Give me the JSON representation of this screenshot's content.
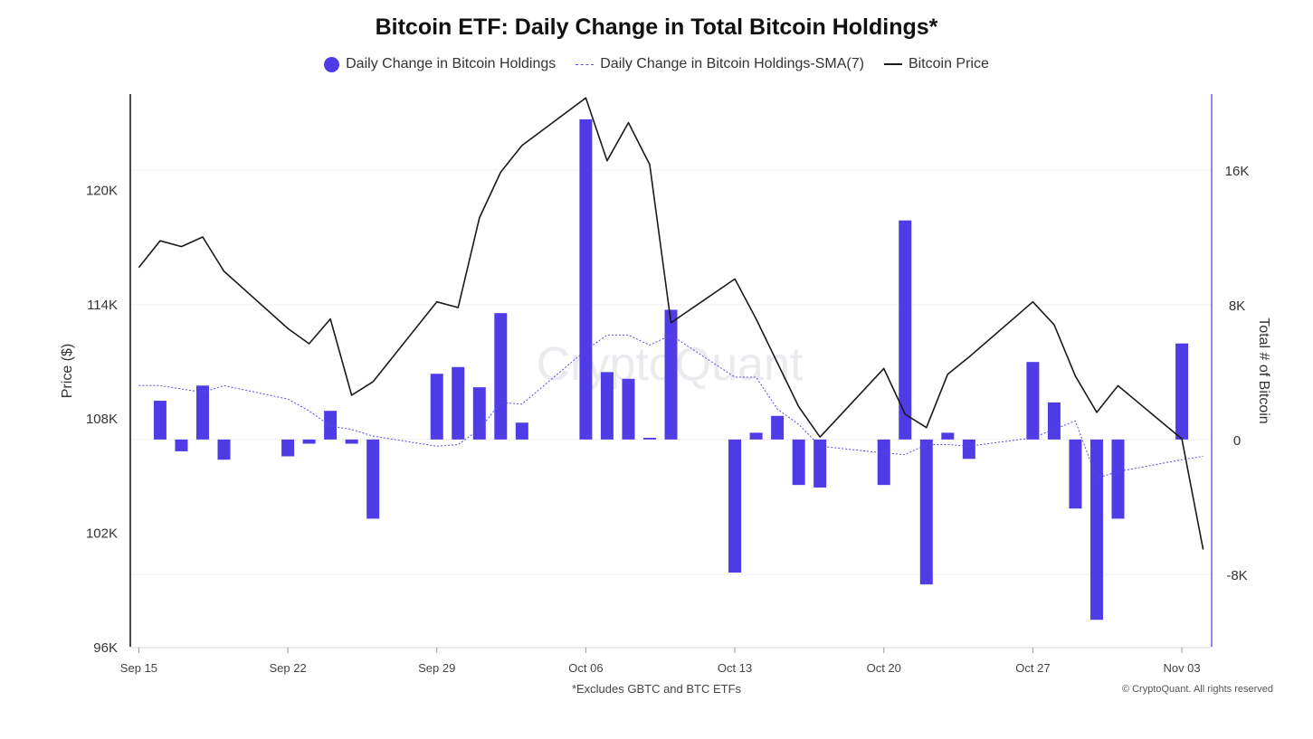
{
  "chart_data": {
    "type": "bar",
    "title": "Bitcoin ETF: Daily Change in Total Bitcoin Holdings*",
    "footnote": "*Excludes GBTC and BTC ETFs",
    "copyright": "© CryptoQuant. All rights reserved",
    "watermark": "CryptoQuant",
    "legend_position": "top-center",
    "grid": true,
    "colors": {
      "bars": "#4f3ce6",
      "sma": "#5a4ae0",
      "price": "#1a1a1a",
      "right_axis": "#6b5cf0"
    },
    "y_left": {
      "label": "Price ($)",
      "ticks": [
        "96K",
        "102K",
        "108K",
        "114K",
        "120K"
      ],
      "tick_values": [
        96000,
        102000,
        108000,
        114000,
        120000
      ],
      "range": [
        96000,
        125000
      ]
    },
    "y_right": {
      "label": "Total # of Bitcoin",
      "ticks": [
        "-8K",
        "0",
        "8K",
        "16K"
      ],
      "tick_values": [
        -8000,
        0,
        8000,
        16000
      ],
      "range": [
        -12300,
        20500
      ]
    },
    "x_axis": {
      "ticks": [
        "Sep 15",
        "Sep 22",
        "Sep 29",
        "Oct 06",
        "Oct 13",
        "Oct 20",
        "Oct 27",
        "Nov 03"
      ],
      "tick_days": [
        0,
        7,
        14,
        21,
        28,
        35,
        42,
        49
      ],
      "range": [
        -0.4,
        50.4
      ]
    },
    "legend": [
      {
        "name": "Daily Change in Bitcoin Holdings",
        "style": "dot"
      },
      {
        "name": "Daily Change in Bitcoin Holdings-SMA(7)",
        "style": "dash"
      },
      {
        "name": "Bitcoin Price",
        "style": "line"
      }
    ],
    "series": [
      {
        "name": "Daily Change in Bitcoin Holdings",
        "type": "bar",
        "x": [
          "2025-09-16",
          "2025-09-17",
          "2025-09-18",
          "2025-09-19",
          "2025-09-22",
          "2025-09-23",
          "2025-09-24",
          "2025-09-25",
          "2025-09-26",
          "2025-09-29",
          "2025-09-30",
          "2025-10-01",
          "2025-10-02",
          "2025-10-03",
          "2025-10-06",
          "2025-10-07",
          "2025-10-08",
          "2025-10-09",
          "2025-10-10",
          "2025-10-13",
          "2025-10-14",
          "2025-10-15",
          "2025-10-16",
          "2025-10-17",
          "2025-10-20",
          "2025-10-21",
          "2025-10-22",
          "2025-10-23",
          "2025-10-24",
          "2025-10-27",
          "2025-10-28",
          "2025-10-29",
          "2025-10-30",
          "2025-10-31",
          "2025-11-03"
        ],
        "values": [
          2300,
          -700,
          3200,
          -1200,
          -1000,
          -250,
          1700,
          -250,
          -4700,
          3900,
          4300,
          3100,
          7500,
          1000,
          19000,
          4000,
          3600,
          100,
          7700,
          -7900,
          400,
          1400,
          -2700,
          -2850,
          -2700,
          13000,
          -8600,
          400,
          -1150,
          4600,
          2200,
          -4100,
          -10700,
          -4700,
          5700
        ]
      },
      {
        "name": "Daily Change in Bitcoin Holdings-SMA(7)",
        "type": "line",
        "x": [
          "2025-09-15",
          "2025-09-16",
          "2025-09-17",
          "2025-09-18",
          "2025-09-19",
          "2025-09-22",
          "2025-09-23",
          "2025-09-24",
          "2025-09-25",
          "2025-09-26",
          "2025-09-29",
          "2025-09-30",
          "2025-10-01",
          "2025-10-02",
          "2025-10-03",
          "2025-10-06",
          "2025-10-07",
          "2025-10-08",
          "2025-10-09",
          "2025-10-10",
          "2025-10-13",
          "2025-10-14",
          "2025-10-15",
          "2025-10-16",
          "2025-10-17",
          "2025-10-20",
          "2025-10-21",
          "2025-10-22",
          "2025-10-23",
          "2025-10-24",
          "2025-10-27",
          "2025-10-28",
          "2025-10-29",
          "2025-10-30",
          "2025-10-31",
          "2025-11-03",
          "2025-11-04"
        ],
        "values": [
          3200,
          3200,
          3000,
          2800,
          3200,
          2400,
          1700,
          800,
          600,
          200,
          -400,
          -300,
          600,
          2200,
          2100,
          5300,
          6200,
          6200,
          5600,
          6200,
          3700,
          3700,
          1800,
          900,
          -400,
          -800,
          -900,
          -300,
          -300,
          -400,
          100,
          600,
          1100,
          -2300,
          -1900,
          -1200,
          -1000
        ]
      },
      {
        "name": "Bitcoin Price",
        "type": "line",
        "x": [
          "2025-09-15",
          "2025-09-16",
          "2025-09-17",
          "2025-09-18",
          "2025-09-19",
          "2025-09-22",
          "2025-09-23",
          "2025-09-24",
          "2025-09-25",
          "2025-09-26",
          "2025-09-29",
          "2025-09-30",
          "2025-10-01",
          "2025-10-02",
          "2025-10-03",
          "2025-10-06",
          "2025-10-07",
          "2025-10-08",
          "2025-10-09",
          "2025-10-10",
          "2025-10-13",
          "2025-10-14",
          "2025-10-15",
          "2025-10-16",
          "2025-10-17",
          "2025-10-20",
          "2025-10-21",
          "2025-10-22",
          "2025-10-23",
          "2025-10-24",
          "2025-10-27",
          "2025-10-28",
          "2025-10-29",
          "2025-10-30",
          "2025-10-31",
          "2025-11-03",
          "2025-11-04"
        ],
        "values": [
          115900,
          117300,
          117000,
          117500,
          115700,
          112700,
          111900,
          113200,
          109200,
          109900,
          114100,
          113800,
          118500,
          120900,
          122300,
          124800,
          121500,
          123500,
          121300,
          113000,
          115300,
          113200,
          110900,
          108600,
          107000,
          110600,
          108200,
          107500,
          110300,
          111200,
          114100,
          112900,
          110200,
          108300,
          109700,
          106900,
          101100
        ]
      }
    ]
  }
}
